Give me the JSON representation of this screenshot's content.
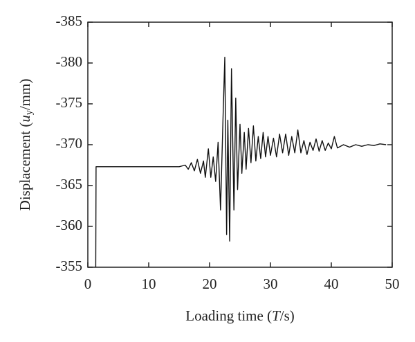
{
  "chart_data": {
    "type": "line",
    "x_label": [
      "Loading time (",
      "T",
      "/s)"
    ],
    "y_label": [
      "Displacement (",
      "u",
      "y",
      "/mm)"
    ],
    "x": [
      1.3,
      1.35,
      5,
      10,
      15,
      16,
      16.5,
      17,
      17.5,
      18,
      18.5,
      19,
      19.3,
      19.8,
      20.2,
      20.6,
      21,
      21.4,
      21.8,
      22.2,
      22.5,
      22.8,
      23,
      23.3,
      23.6,
      24,
      24.3,
      24.6,
      25,
      25.3,
      25.7,
      26,
      26.4,
      26.8,
      27.2,
      27.6,
      28,
      28.4,
      28.8,
      29.2,
      29.6,
      30,
      30.5,
      31,
      31.5,
      32,
      32.5,
      33,
      33.5,
      34,
      34.5,
      35,
      35.5,
      36,
      36.5,
      37,
      37.5,
      38,
      38.5,
      39,
      39.5,
      40,
      40.5,
      41,
      42,
      43,
      44,
      45,
      46,
      47,
      48,
      49
    ],
    "series": [
      {
        "color": "#111111",
        "values": [
          -355,
          -367.3,
          -367.3,
          -367.3,
          -367.3,
          -367.5,
          -367,
          -367.8,
          -366.8,
          -368.2,
          -366.5,
          -368,
          -366,
          -369.5,
          -366,
          -368.5,
          -365.5,
          -370.3,
          -362,
          -373,
          -380.7,
          -359,
          -373,
          -358.2,
          -379.3,
          -362,
          -375.7,
          -364.5,
          -372.5,
          -366.5,
          -371.5,
          -367,
          -372,
          -367.8,
          -372.3,
          -368,
          -371,
          -368.3,
          -371.5,
          -368.5,
          -371,
          -368.7,
          -370.8,
          -368.5,
          -371.3,
          -369,
          -371.3,
          -368.7,
          -371,
          -369,
          -371.8,
          -369,
          -370.5,
          -368.8,
          -370.3,
          -369.3,
          -370.7,
          -369.2,
          -370.5,
          -369.3,
          -370.2,
          -369.5,
          -371,
          -369.6,
          -370,
          -369.7,
          -370,
          -369.8,
          -370,
          -369.9,
          -370.1,
          -370
        ]
      }
    ],
    "xlim": [
      0,
      50
    ],
    "xticks": [
      0,
      10,
      20,
      30,
      40,
      50
    ],
    "ylim": [
      -355,
      -385
    ],
    "yticks": [
      -385,
      -380,
      -375,
      -370,
      -365,
      -360,
      -355
    ]
  }
}
